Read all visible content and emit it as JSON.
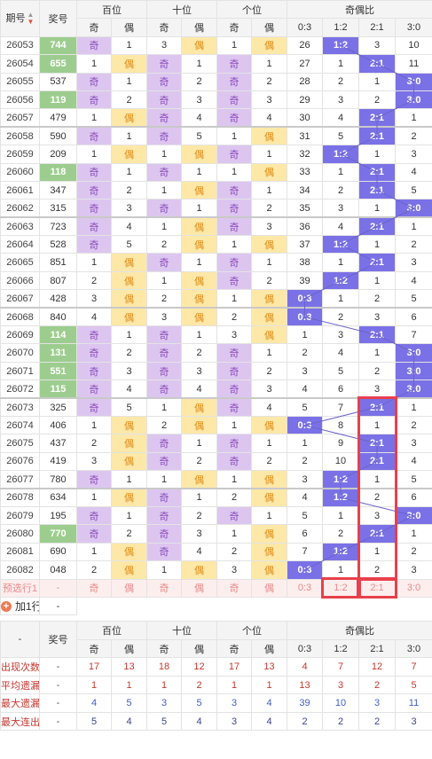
{
  "header": {
    "issue": "期号",
    "award": "奖号",
    "hundred": "百位",
    "ten": "十位",
    "unit": "个位",
    "ratio": "奇偶比",
    "odd": "奇",
    "even": "偶",
    "ratios": [
      "0:3",
      "1:2",
      "2:1",
      "3:0"
    ]
  },
  "rows": [
    {
      "issue": "26053",
      "award": "744",
      "win": true,
      "h": [
        "o",
        "1"
      ],
      "t": [
        "3",
        "e"
      ],
      "u": [
        "1",
        "e"
      ],
      "r": [
        "26",
        "p",
        "3",
        "10"
      ]
    },
    {
      "issue": "26054",
      "award": "655",
      "win": true,
      "h": [
        "1",
        "e"
      ],
      "t": [
        "o",
        "1"
      ],
      "u": [
        "o",
        "1"
      ],
      "r": [
        "27",
        "1",
        "p",
        "11"
      ]
    },
    {
      "issue": "26055",
      "award": "537",
      "win": false,
      "h": [
        "o",
        "1"
      ],
      "t": [
        "o",
        "2"
      ],
      "u": [
        "o",
        "2"
      ],
      "r": [
        "28",
        "2",
        "1",
        "p"
      ]
    },
    {
      "issue": "26056",
      "award": "119",
      "win": true,
      "h": [
        "o",
        "2"
      ],
      "t": [
        "o",
        "3"
      ],
      "u": [
        "o",
        "3"
      ],
      "r": [
        "29",
        "3",
        "2",
        "p"
      ]
    },
    {
      "issue": "26057",
      "award": "479",
      "win": false,
      "h": [
        "1",
        "e"
      ],
      "t": [
        "o",
        "4"
      ],
      "u": [
        "o",
        "4"
      ],
      "r": [
        "30",
        "4",
        "p",
        "1"
      ]
    },
    {
      "issue": "26058",
      "award": "590",
      "win": false,
      "h": [
        "o",
        "1"
      ],
      "t": [
        "o",
        "5"
      ],
      "u": [
        "1",
        "e"
      ],
      "r": [
        "31",
        "5",
        "p",
        "2"
      ]
    },
    {
      "issue": "26059",
      "award": "209",
      "win": false,
      "h": [
        "1",
        "e"
      ],
      "t": [
        "1",
        "e"
      ],
      "u": [
        "o",
        "1"
      ],
      "r": [
        "32",
        "p",
        "1",
        "3"
      ]
    },
    {
      "issue": "26060",
      "award": "118",
      "win": true,
      "h": [
        "o",
        "1"
      ],
      "t": [
        "o",
        "1"
      ],
      "u": [
        "1",
        "e"
      ],
      "r": [
        "33",
        "1",
        "p",
        "4"
      ]
    },
    {
      "issue": "26061",
      "award": "347",
      "win": false,
      "h": [
        "o",
        "2"
      ],
      "t": [
        "1",
        "e"
      ],
      "u": [
        "o",
        "1"
      ],
      "r": [
        "34",
        "2",
        "p",
        "5"
      ]
    },
    {
      "issue": "26062",
      "award": "315",
      "win": false,
      "h": [
        "o",
        "3"
      ],
      "t": [
        "o",
        "1"
      ],
      "u": [
        "o",
        "2"
      ],
      "r": [
        "35",
        "3",
        "1",
        "p"
      ]
    },
    {
      "issue": "26063",
      "award": "723",
      "win": false,
      "h": [
        "o",
        "4"
      ],
      "t": [
        "1",
        "e"
      ],
      "u": [
        "o",
        "3"
      ],
      "r": [
        "36",
        "4",
        "p",
        "1"
      ]
    },
    {
      "issue": "26064",
      "award": "528",
      "win": false,
      "h": [
        "o",
        "5"
      ],
      "t": [
        "2",
        "e"
      ],
      "u": [
        "1",
        "e"
      ],
      "r": [
        "37",
        "p",
        "1",
        "2"
      ]
    },
    {
      "issue": "26065",
      "award": "851",
      "win": false,
      "h": [
        "1",
        "e"
      ],
      "t": [
        "o",
        "1"
      ],
      "u": [
        "o",
        "1"
      ],
      "r": [
        "38",
        "1",
        "p",
        "3"
      ]
    },
    {
      "issue": "26066",
      "award": "807",
      "win": false,
      "h": [
        "2",
        "e"
      ],
      "t": [
        "1",
        "e"
      ],
      "u": [
        "o",
        "2"
      ],
      "r": [
        "39",
        "p",
        "1",
        "4"
      ]
    },
    {
      "issue": "26067",
      "award": "428",
      "win": false,
      "h": [
        "3",
        "e"
      ],
      "t": [
        "2",
        "e"
      ],
      "u": [
        "1",
        "e"
      ],
      "r": [
        "p",
        "1",
        "2",
        "5"
      ]
    },
    {
      "issue": "26068",
      "award": "840",
      "win": false,
      "h": [
        "4",
        "e"
      ],
      "t": [
        "3",
        "e"
      ],
      "u": [
        "2",
        "e"
      ],
      "r": [
        "p",
        "2",
        "3",
        "6"
      ]
    },
    {
      "issue": "26069",
      "award": "114",
      "win": true,
      "h": [
        "o",
        "1"
      ],
      "t": [
        "o",
        "1"
      ],
      "u": [
        "3",
        "e"
      ],
      "r": [
        "1",
        "3",
        "p",
        "7"
      ]
    },
    {
      "issue": "26070",
      "award": "131",
      "win": true,
      "h": [
        "o",
        "2"
      ],
      "t": [
        "o",
        "2"
      ],
      "u": [
        "o",
        "1"
      ],
      "r": [
        "2",
        "4",
        "1",
        "p"
      ]
    },
    {
      "issue": "26071",
      "award": "551",
      "win": true,
      "h": [
        "o",
        "3"
      ],
      "t": [
        "o",
        "3"
      ],
      "u": [
        "o",
        "2"
      ],
      "r": [
        "3",
        "5",
        "2",
        "p"
      ]
    },
    {
      "issue": "26072",
      "award": "115",
      "win": true,
      "h": [
        "o",
        "4"
      ],
      "t": [
        "o",
        "4"
      ],
      "u": [
        "o",
        "3"
      ],
      "r": [
        "4",
        "6",
        "3",
        "p"
      ]
    },
    {
      "issue": "26073",
      "award": "325",
      "win": false,
      "h": [
        "o",
        "5"
      ],
      "t": [
        "1",
        "e"
      ],
      "u": [
        "o",
        "4"
      ],
      "r": [
        "5",
        "7",
        "p",
        "1"
      ]
    },
    {
      "issue": "26074",
      "award": "406",
      "win": false,
      "h": [
        "1",
        "e"
      ],
      "t": [
        "2",
        "e"
      ],
      "u": [
        "1",
        "e"
      ],
      "r": [
        "p",
        "8",
        "1",
        "2"
      ]
    },
    {
      "issue": "26075",
      "award": "437",
      "win": false,
      "h": [
        "2",
        "e"
      ],
      "t": [
        "o",
        "1"
      ],
      "u": [
        "o",
        "1"
      ],
      "r": [
        "1",
        "9",
        "p",
        "3"
      ]
    },
    {
      "issue": "26076",
      "award": "419",
      "win": false,
      "h": [
        "3",
        "e"
      ],
      "t": [
        "o",
        "2"
      ],
      "u": [
        "o",
        "2"
      ],
      "r": [
        "2",
        "10",
        "p",
        "4"
      ]
    },
    {
      "issue": "26077",
      "award": "780",
      "win": false,
      "h": [
        "o",
        "1"
      ],
      "t": [
        "1",
        "e"
      ],
      "u": [
        "1",
        "e"
      ],
      "r": [
        "3",
        "p",
        "1",
        "5"
      ]
    },
    {
      "issue": "26078",
      "award": "634",
      "win": false,
      "h": [
        "1",
        "e"
      ],
      "t": [
        "o",
        "1"
      ],
      "u": [
        "2",
        "e"
      ],
      "r": [
        "4",
        "p",
        "2",
        "6"
      ]
    },
    {
      "issue": "26079",
      "award": "195",
      "win": false,
      "h": [
        "o",
        "1"
      ],
      "t": [
        "o",
        "2"
      ],
      "u": [
        "o",
        "1"
      ],
      "r": [
        "5",
        "1",
        "3",
        "p"
      ]
    },
    {
      "issue": "26080",
      "award": "770",
      "win": true,
      "h": [
        "o",
        "2"
      ],
      "t": [
        "o",
        "3"
      ],
      "u": [
        "1",
        "e"
      ],
      "r": [
        "6",
        "2",
        "p",
        "1"
      ]
    },
    {
      "issue": "26081",
      "award": "690",
      "win": false,
      "h": [
        "1",
        "e"
      ],
      "t": [
        "o",
        "4"
      ],
      "u": [
        "2",
        "e"
      ],
      "r": [
        "7",
        "p",
        "1",
        "2"
      ]
    },
    {
      "issue": "26082",
      "award": "048",
      "win": false,
      "h": [
        "2",
        "e"
      ],
      "t": [
        "1",
        "e"
      ],
      "u": [
        "3",
        "e"
      ],
      "r": [
        "p",
        "1",
        "2",
        "3"
      ]
    }
  ],
  "preselect": {
    "label": "预选行1",
    "award": "-",
    "cells": [
      "奇",
      "偶",
      "奇",
      "偶",
      "奇",
      "偶",
      "0:3",
      "1:2",
      "2:1",
      "3:0"
    ]
  },
  "add_row": {
    "label": "加1行",
    "plus": "+",
    "dash": "-"
  },
  "stats_header": {
    "dash": "-",
    "award": "奖号"
  },
  "stats": [
    {
      "label": "出现次数",
      "award": "-",
      "values": [
        "17",
        "13",
        "18",
        "12",
        "17",
        "13",
        "4",
        "7",
        "12",
        "7"
      ],
      "cls": "s-red"
    },
    {
      "label": "平均遗漏",
      "award": "-",
      "values": [
        "1",
        "1",
        "1",
        "2",
        "1",
        "1",
        "13",
        "3",
        "2",
        "5"
      ],
      "cls": "s-red"
    },
    {
      "label": "最大遗漏",
      "award": "-",
      "values": [
        "4",
        "5",
        "3",
        "5",
        "3",
        "4",
        "39",
        "10",
        "3",
        "11"
      ],
      "cls": "s-blue"
    },
    {
      "label": "最大连出",
      "award": "-",
      "values": [
        "5",
        "4",
        "5",
        "4",
        "3",
        "4",
        "2",
        "2",
        "2",
        "3"
      ],
      "cls": "s-navy"
    }
  ]
}
